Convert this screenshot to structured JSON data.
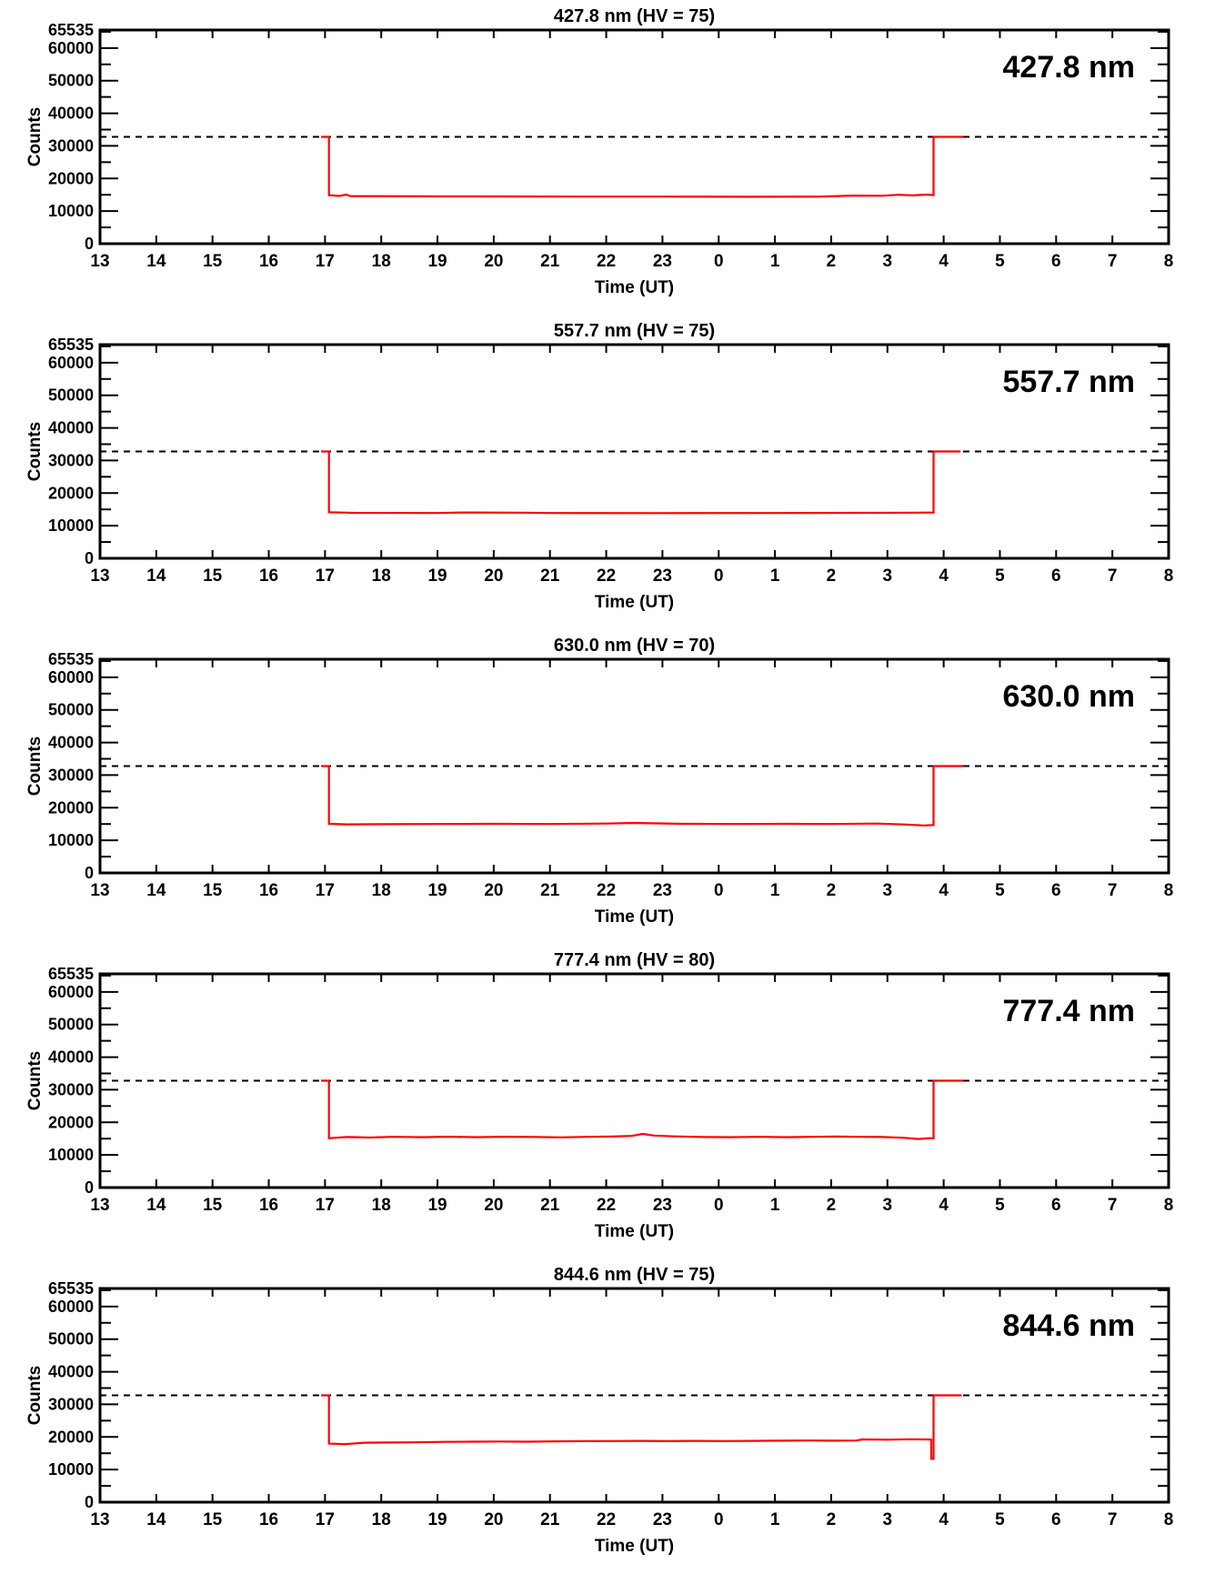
{
  "page": {
    "background": "#ffffff",
    "text_color": "#000000"
  },
  "chart_data": [
    {
      "type": "line",
      "title": "427.8 nm (HV = 75)",
      "annotation": "427.8 nm",
      "xlabel": "Time (UT)",
      "ylabel": "Counts",
      "xlim": [
        13,
        32
      ],
      "ylim": [
        0,
        65535
      ],
      "x_ticks": [
        13,
        14,
        15,
        16,
        17,
        18,
        19,
        20,
        21,
        22,
        23,
        24,
        25,
        26,
        27,
        28,
        29,
        30,
        31,
        32
      ],
      "x_tick_labels": [
        "13",
        "14",
        "15",
        "16",
        "17",
        "18",
        "19",
        "20",
        "21",
        "22",
        "23",
        "0",
        "1",
        "2",
        "3",
        "4",
        "5",
        "6",
        "7",
        "8"
      ],
      "y_major_ticks": [
        0,
        10000,
        20000,
        30000,
        40000,
        50000,
        60000
      ],
      "y_major_tick_labels": [
        "0",
        "10000",
        "20000",
        "30000",
        "40000",
        "50000",
        "60000"
      ],
      "y_minor_ticks": [
        5000,
        15000,
        25000,
        35000,
        45000,
        55000,
        65000
      ],
      "y_top_label": "65535",
      "reference_line_y": 32767,
      "reference_line_style": "dashed",
      "line_color": "#ff0000",
      "grid": false,
      "legend": "none",
      "series": [
        [
          16.93,
          32767
        ],
        [
          17.07,
          32767
        ],
        [
          17.07,
          14900
        ],
        [
          17.25,
          14650
        ],
        [
          17.38,
          15050
        ],
        [
          17.45,
          14600
        ],
        [
          18.5,
          14550
        ],
        [
          20,
          14500
        ],
        [
          21.5,
          14450
        ],
        [
          23,
          14450
        ],
        [
          24.5,
          14400
        ],
        [
          25.8,
          14450
        ],
        [
          26.4,
          14750
        ],
        [
          26.9,
          14700
        ],
        [
          27.2,
          15000
        ],
        [
          27.45,
          14800
        ],
        [
          27.7,
          15050
        ],
        [
          27.82,
          14900
        ],
        [
          27.82,
          32767
        ],
        [
          28.35,
          32767
        ]
      ]
    },
    {
      "type": "line",
      "title": "557.7 nm (HV = 75)",
      "annotation": "557.7 nm",
      "xlabel": "Time (UT)",
      "ylabel": "Counts",
      "xlim": [
        13,
        32
      ],
      "ylim": [
        0,
        65535
      ],
      "x_ticks": [
        13,
        14,
        15,
        16,
        17,
        18,
        19,
        20,
        21,
        22,
        23,
        24,
        25,
        26,
        27,
        28,
        29,
        30,
        31,
        32
      ],
      "x_tick_labels": [
        "13",
        "14",
        "15",
        "16",
        "17",
        "18",
        "19",
        "20",
        "21",
        "22",
        "23",
        "0",
        "1",
        "2",
        "3",
        "4",
        "5",
        "6",
        "7",
        "8"
      ],
      "y_major_ticks": [
        0,
        10000,
        20000,
        30000,
        40000,
        50000,
        60000
      ],
      "y_major_tick_labels": [
        "0",
        "10000",
        "20000",
        "30000",
        "40000",
        "50000",
        "60000"
      ],
      "y_minor_ticks": [
        5000,
        15000,
        25000,
        35000,
        45000,
        55000,
        65000
      ],
      "y_top_label": "65535",
      "reference_line_y": 32767,
      "reference_line_style": "dashed",
      "line_color": "#ff0000",
      "grid": false,
      "legend": "none",
      "series": [
        [
          16.93,
          32767
        ],
        [
          17.07,
          32767
        ],
        [
          17.07,
          14150
        ],
        [
          17.5,
          13950
        ],
        [
          19,
          13900
        ],
        [
          19.5,
          14050
        ],
        [
          20.5,
          14000
        ],
        [
          21,
          13900
        ],
        [
          23,
          13850
        ],
        [
          25,
          13900
        ],
        [
          26.5,
          13950
        ],
        [
          27.5,
          14000
        ],
        [
          27.82,
          14050
        ],
        [
          27.82,
          32767
        ],
        [
          28.3,
          32767
        ]
      ]
    },
    {
      "type": "line",
      "title": "630.0 nm (HV = 70)",
      "annotation": "630.0 nm",
      "xlabel": "Time (UT)",
      "ylabel": "Counts",
      "xlim": [
        13,
        32
      ],
      "ylim": [
        0,
        65535
      ],
      "x_ticks": [
        13,
        14,
        15,
        16,
        17,
        18,
        19,
        20,
        21,
        22,
        23,
        24,
        25,
        26,
        27,
        28,
        29,
        30,
        31,
        32
      ],
      "x_tick_labels": [
        "13",
        "14",
        "15",
        "16",
        "17",
        "18",
        "19",
        "20",
        "21",
        "22",
        "23",
        "0",
        "1",
        "2",
        "3",
        "4",
        "5",
        "6",
        "7",
        "8"
      ],
      "y_major_ticks": [
        0,
        10000,
        20000,
        30000,
        40000,
        50000,
        60000
      ],
      "y_major_tick_labels": [
        "0",
        "10000",
        "20000",
        "30000",
        "40000",
        "50000",
        "60000"
      ],
      "y_minor_ticks": [
        5000,
        15000,
        25000,
        35000,
        45000,
        55000,
        65000
      ],
      "y_top_label": "65535",
      "reference_line_y": 32767,
      "reference_line_style": "dashed",
      "line_color": "#ff0000",
      "grid": false,
      "legend": "none",
      "series": [
        [
          16.93,
          32767
        ],
        [
          17.07,
          32767
        ],
        [
          17.07,
          15050
        ],
        [
          17.4,
          14900
        ],
        [
          18,
          14950
        ],
        [
          19,
          15000
        ],
        [
          20,
          15050
        ],
        [
          21,
          15000
        ],
        [
          22,
          15150
        ],
        [
          22.5,
          15350
        ],
        [
          22.9,
          15200
        ],
        [
          23.4,
          15050
        ],
        [
          24.3,
          15000
        ],
        [
          25.2,
          15050
        ],
        [
          26,
          15000
        ],
        [
          26.8,
          15150
        ],
        [
          27.3,
          14850
        ],
        [
          27.65,
          14550
        ],
        [
          27.82,
          14700
        ],
        [
          27.82,
          32767
        ],
        [
          28.35,
          32767
        ]
      ]
    },
    {
      "type": "line",
      "title": "777.4 nm (HV = 80)",
      "annotation": "777.4 nm",
      "xlabel": "Time (UT)",
      "ylabel": "Counts",
      "xlim": [
        13,
        32
      ],
      "ylim": [
        0,
        65535
      ],
      "x_ticks": [
        13,
        14,
        15,
        16,
        17,
        18,
        19,
        20,
        21,
        22,
        23,
        24,
        25,
        26,
        27,
        28,
        29,
        30,
        31,
        32
      ],
      "x_tick_labels": [
        "13",
        "14",
        "15",
        "16",
        "17",
        "18",
        "19",
        "20",
        "21",
        "22",
        "23",
        "0",
        "1",
        "2",
        "3",
        "4",
        "5",
        "6",
        "7",
        "8"
      ],
      "y_major_ticks": [
        0,
        10000,
        20000,
        30000,
        40000,
        50000,
        60000
      ],
      "y_major_tick_labels": [
        "0",
        "10000",
        "20000",
        "30000",
        "40000",
        "50000",
        "60000"
      ],
      "y_minor_ticks": [
        5000,
        15000,
        25000,
        35000,
        45000,
        55000,
        65000
      ],
      "y_top_label": "65535",
      "reference_line_y": 32767,
      "reference_line_style": "dashed",
      "line_color": "#ff0000",
      "grid": false,
      "legend": "none",
      "series": [
        [
          16.93,
          32767
        ],
        [
          17.07,
          32767
        ],
        [
          17.07,
          15150
        ],
        [
          17.4,
          15500
        ],
        [
          17.8,
          15350
        ],
        [
          18.2,
          15550
        ],
        [
          18.7,
          15450
        ],
        [
          19.2,
          15600
        ],
        [
          19.7,
          15450
        ],
        [
          20.2,
          15600
        ],
        [
          20.7,
          15500
        ],
        [
          21.2,
          15400
        ],
        [
          21.7,
          15550
        ],
        [
          22.1,
          15650
        ],
        [
          22.45,
          15850
        ],
        [
          22.65,
          16450
        ],
        [
          22.85,
          15950
        ],
        [
          23.2,
          15700
        ],
        [
          23.7,
          15500
        ],
        [
          24.2,
          15450
        ],
        [
          24.7,
          15550
        ],
        [
          25.2,
          15450
        ],
        [
          25.7,
          15550
        ],
        [
          26.1,
          15650
        ],
        [
          26.5,
          15550
        ],
        [
          26.9,
          15500
        ],
        [
          27.3,
          15250
        ],
        [
          27.55,
          14900
        ],
        [
          27.75,
          15150
        ],
        [
          27.82,
          15050
        ],
        [
          27.82,
          32767
        ],
        [
          28.35,
          32767
        ]
      ]
    },
    {
      "type": "line",
      "title": "844.6 nm (HV = 75)",
      "annotation": "844.6 nm",
      "xlabel": "Time (UT)",
      "ylabel": "Counts",
      "xlim": [
        13,
        32
      ],
      "ylim": [
        0,
        65535
      ],
      "x_ticks": [
        13,
        14,
        15,
        16,
        17,
        18,
        19,
        20,
        21,
        22,
        23,
        24,
        25,
        26,
        27,
        28,
        29,
        30,
        31,
        32
      ],
      "x_tick_labels": [
        "13",
        "14",
        "15",
        "16",
        "17",
        "18",
        "19",
        "20",
        "21",
        "22",
        "23",
        "0",
        "1",
        "2",
        "3",
        "4",
        "5",
        "6",
        "7",
        "8"
      ],
      "y_major_ticks": [
        0,
        10000,
        20000,
        30000,
        40000,
        50000,
        60000
      ],
      "y_major_tick_labels": [
        "0",
        "10000",
        "20000",
        "30000",
        "40000",
        "50000",
        "60000"
      ],
      "y_minor_ticks": [
        5000,
        15000,
        25000,
        35000,
        45000,
        55000,
        65000
      ],
      "y_top_label": "65535",
      "reference_line_y": 32767,
      "reference_line_style": "dashed",
      "line_color": "#ff0000",
      "grid": false,
      "legend": "none",
      "series": [
        [
          16.93,
          32767
        ],
        [
          17.07,
          32767
        ],
        [
          17.07,
          17950
        ],
        [
          17.35,
          17800
        ],
        [
          17.7,
          18250
        ],
        [
          18.1,
          18300
        ],
        [
          18.6,
          18350
        ],
        [
          19.1,
          18500
        ],
        [
          19.6,
          18550
        ],
        [
          20.1,
          18600
        ],
        [
          20.6,
          18550
        ],
        [
          21.1,
          18650
        ],
        [
          21.6,
          18700
        ],
        [
          22.1,
          18750
        ],
        [
          22.6,
          18800
        ],
        [
          23.1,
          18700
        ],
        [
          23.6,
          18800
        ],
        [
          24.1,
          18750
        ],
        [
          24.6,
          18800
        ],
        [
          25.1,
          18850
        ],
        [
          25.6,
          18900
        ],
        [
          26,
          18850
        ],
        [
          26.45,
          18900
        ],
        [
          26.55,
          19250
        ],
        [
          27,
          19150
        ],
        [
          27.4,
          19300
        ],
        [
          27.7,
          19250
        ],
        [
          27.78,
          19200
        ],
        [
          27.78,
          13300
        ],
        [
          27.82,
          13300
        ],
        [
          27.82,
          32767
        ],
        [
          28.32,
          32767
        ]
      ]
    }
  ]
}
